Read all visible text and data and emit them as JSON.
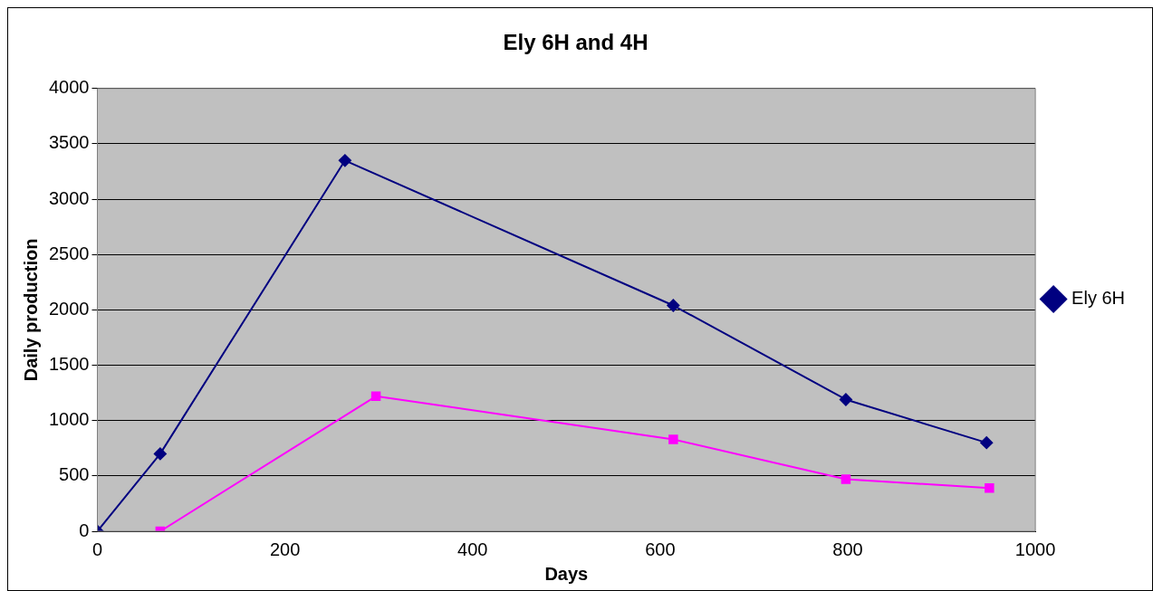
{
  "chart_data": {
    "type": "line",
    "title": "Ely 6H and 4H",
    "xlabel": "Days",
    "ylabel": "Daily production",
    "xlim": [
      0,
      1000
    ],
    "xticks": [
      0,
      200,
      400,
      600,
      800,
      1000
    ],
    "ylim": [
      0,
      4000
    ],
    "yticks": [
      0,
      500,
      1000,
      1500,
      2000,
      2500,
      3000,
      3500,
      4000
    ],
    "grid": "y",
    "legend": "right",
    "line_style": "solid",
    "series": [
      {
        "name": "Ely 6H",
        "color": "#000080",
        "marker": "diamond",
        "x": [
          0,
          67,
          264,
          614,
          798,
          948
        ],
        "values": [
          0,
          700,
          3350,
          2040,
          1190,
          800
        ]
      },
      {
        "color": "#ff00ff",
        "marker": "square",
        "x": [
          67,
          297,
          614,
          798,
          951
        ],
        "values": [
          0,
          1220,
          830,
          470,
          390
        ]
      }
    ]
  }
}
